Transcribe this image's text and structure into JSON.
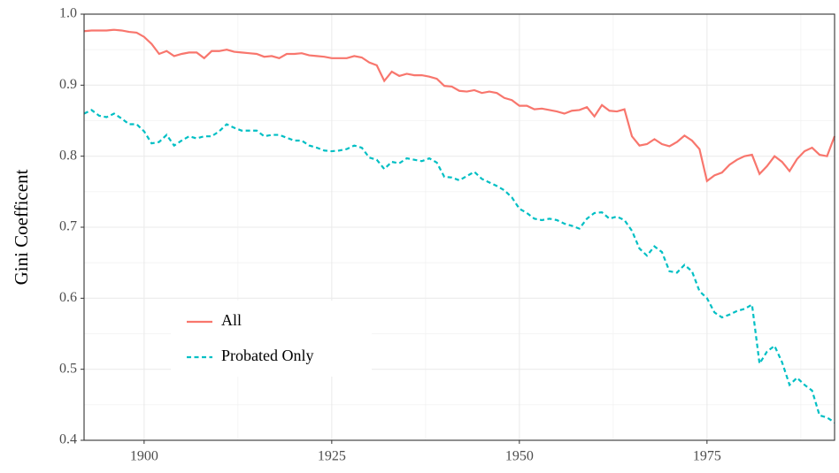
{
  "chart_data": {
    "type": "line",
    "y_label": "Gini Coefficent",
    "xlim": [
      1892,
      1992
    ],
    "xticks": [
      1900,
      1925,
      1950,
      1975
    ],
    "ylim": [
      0.4,
      1.0
    ],
    "yticks": [
      0.4,
      0.5,
      0.6,
      0.7,
      0.8,
      0.9,
      {
        "value": 1,
        "label": "1.0"
      }
    ],
    "grid": true,
    "legend_position": "bottom-left",
    "x": [
      1892,
      1893,
      1894,
      1895,
      1896,
      1897,
      1898,
      1899,
      1900,
      1901,
      1902,
      1903,
      1904,
      1905,
      1906,
      1907,
      1908,
      1909,
      1910,
      1911,
      1912,
      1913,
      1914,
      1915,
      1916,
      1917,
      1918,
      1919,
      1920,
      1921,
      1922,
      1923,
      1924,
      1925,
      1926,
      1927,
      1928,
      1929,
      1930,
      1931,
      1932,
      1933,
      1934,
      1935,
      1936,
      1937,
      1938,
      1939,
      1940,
      1941,
      1942,
      1943,
      1944,
      1945,
      1946,
      1947,
      1948,
      1949,
      1950,
      1951,
      1952,
      1953,
      1954,
      1955,
      1956,
      1957,
      1958,
      1959,
      1960,
      1961,
      1962,
      1963,
      1964,
      1965,
      1966,
      1967,
      1968,
      1969,
      1970,
      1971,
      1972,
      1973,
      1974,
      1975,
      1976,
      1977,
      1978,
      1979,
      1980,
      1981,
      1982,
      1983,
      1984,
      1985,
      1986,
      1987,
      1988,
      1989,
      1990,
      1991,
      1992
    ],
    "series": [
      {
        "name": "All",
        "color": "#F8766D",
        "dash": "solid",
        "values": [
          0.976,
          0.977,
          0.977,
          0.977,
          0.978,
          0.977,
          0.975,
          0.974,
          0.968,
          0.958,
          0.944,
          0.948,
          0.941,
          0.944,
          0.946,
          0.946,
          0.938,
          0.948,
          0.948,
          0.95,
          0.947,
          0.946,
          0.945,
          0.944,
          0.94,
          0.941,
          0.938,
          0.944,
          0.944,
          0.945,
          0.942,
          0.941,
          0.94,
          0.938,
          0.938,
          0.938,
          0.941,
          0.939,
          0.932,
          0.928,
          0.906,
          0.919,
          0.913,
          0.916,
          0.914,
          0.914,
          0.912,
          0.909,
          0.899,
          0.898,
          0.892,
          0.891,
          0.893,
          0.889,
          0.891,
          0.889,
          0.882,
          0.879,
          0.871,
          0.871,
          0.866,
          0.867,
          0.865,
          0.863,
          0.86,
          0.864,
          0.865,
          0.869,
          0.856,
          0.872,
          0.864,
          0.863,
          0.866,
          0.828,
          0.815,
          0.817,
          0.824,
          0.817,
          0.814,
          0.82,
          0.829,
          0.822,
          0.81,
          0.765,
          0.773,
          0.777,
          0.788,
          0.795,
          0.8,
          0.802,
          0.775,
          0.786,
          0.8,
          0.792,
          0.779,
          0.796,
          0.807,
          0.812,
          0.802,
          0.8,
          0.828
        ]
      },
      {
        "name": "Probated Only",
        "color": "#00BFC4",
        "dash": "dashed",
        "values": [
          0.86,
          0.865,
          0.857,
          0.855,
          0.86,
          0.853,
          0.845,
          0.845,
          0.835,
          0.818,
          0.82,
          0.83,
          0.815,
          0.822,
          0.828,
          0.825,
          0.828,
          0.828,
          0.835,
          0.845,
          0.84,
          0.836,
          0.836,
          0.836,
          0.828,
          0.83,
          0.83,
          0.826,
          0.822,
          0.822,
          0.815,
          0.812,
          0.808,
          0.807,
          0.808,
          0.81,
          0.815,
          0.812,
          0.798,
          0.795,
          0.782,
          0.792,
          0.79,
          0.797,
          0.795,
          0.793,
          0.797,
          0.791,
          0.771,
          0.77,
          0.766,
          0.772,
          0.778,
          0.768,
          0.763,
          0.758,
          0.752,
          0.742,
          0.726,
          0.72,
          0.712,
          0.71,
          0.712,
          0.71,
          0.705,
          0.702,
          0.698,
          0.712,
          0.72,
          0.721,
          0.712,
          0.715,
          0.71,
          0.695,
          0.67,
          0.66,
          0.673,
          0.665,
          0.638,
          0.636,
          0.647,
          0.638,
          0.61,
          0.6,
          0.58,
          0.573,
          0.577,
          0.582,
          0.585,
          0.591,
          0.508,
          0.525,
          0.533,
          0.51,
          0.478,
          0.488,
          0.478,
          0.47,
          0.435,
          0.432,
          0.425
        ]
      }
    ]
  }
}
